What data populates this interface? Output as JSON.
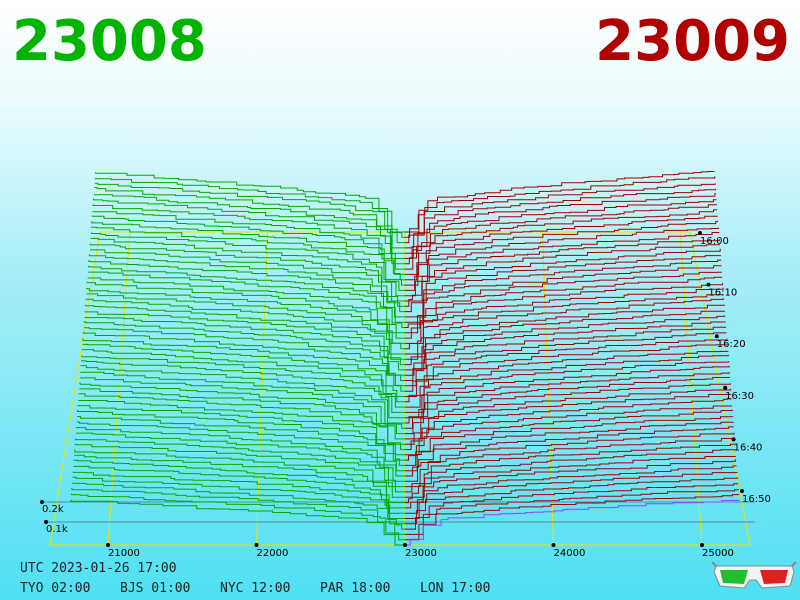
{
  "header": {
    "bid_price": "23008",
    "ask_price": "23009"
  },
  "axes": {
    "price_ticks": [
      "21000",
      "22000",
      "23000",
      "24000",
      "25000"
    ],
    "time_ticks": [
      "16:00",
      "16:10",
      "16:20",
      "16:30",
      "16:40",
      "16:50"
    ],
    "depth_ticks": [
      "0.2k",
      "0.1k"
    ]
  },
  "footer": {
    "utc": "UTC 2023-01-26 17:00",
    "clocks": [
      "TYO 02:00",
      "BJS 01:00",
      "NYC 12:00",
      "PAR 18:00",
      "LON 17:00"
    ]
  }
}
